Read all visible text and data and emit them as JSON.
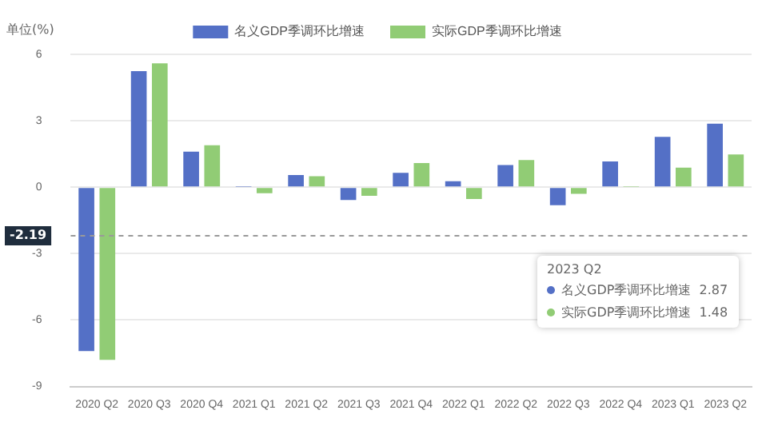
{
  "chart_data": {
    "type": "bar",
    "ylabel": "单位(%)",
    "categories": [
      "2020 Q2",
      "2020 Q3",
      "2020 Q4",
      "2021 Q1",
      "2021 Q2",
      "2021 Q3",
      "2021 Q4",
      "2022 Q1",
      "2022 Q2",
      "2022 Q3",
      "2022 Q4",
      "2023 Q1",
      "2023 Q2"
    ],
    "series": [
      {
        "name": "名义GDP季调环比增速",
        "color": "#5470c6",
        "values": [
          -7.4,
          5.24,
          1.61,
          0.02,
          0.55,
          -0.58,
          0.65,
          0.27,
          1.0,
          -0.81,
          1.16,
          2.27,
          2.87
        ]
      },
      {
        "name": "实际GDP季调环比增速",
        "color": "#91cc75",
        "values": [
          -7.8,
          5.59,
          1.89,
          -0.27,
          0.5,
          -0.39,
          1.09,
          -0.53,
          1.23,
          -0.3,
          0.02,
          0.88,
          1.48
        ]
      }
    ],
    "ylim": [
      -9,
      6
    ],
    "yticks": [
      -9,
      -6,
      -3,
      0,
      3,
      6
    ],
    "grid": "y",
    "legend": "top",
    "ref_lines": [
      {
        "axis": "y",
        "value": -2.19,
        "label": "-2.19",
        "line_style": "dashed"
      }
    ],
    "annotations": [
      "2023 Q2",
      "名义GDP季调环比增速  2.87",
      "实际GDP季调环比增速  1.48"
    ]
  }
}
